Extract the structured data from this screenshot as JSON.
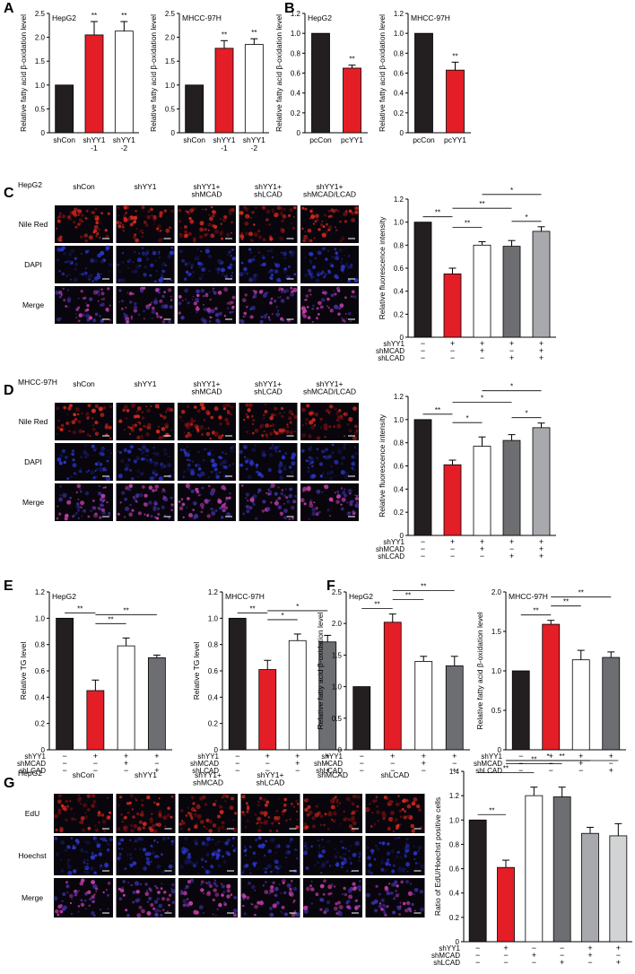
{
  "colors": {
    "black": "#231f20",
    "red": "#e41e26",
    "white": "#ffffff",
    "dark_gray": "#6d6e71",
    "mid_gray": "#a7a9ac",
    "light_gray": "#d1d3d4",
    "image_bg": "#08060c"
  },
  "panels": {
    "A": {
      "letter": "A"
    },
    "B": {
      "letter": "B"
    },
    "C": {
      "letter": "C",
      "cell": "HepG2",
      "cols": [
        "shCon",
        "shYY1",
        "shYY1+\nshMCAD",
        "shYY1+\nshLCAD",
        "shYY1+\nshMCAD/LCAD"
      ],
      "rows": [
        "Nile Red",
        "DAPI",
        "Merge"
      ]
    },
    "D": {
      "letter": "D",
      "cell": "MHCC-97H",
      "cols": [
        "shCon",
        "shYY1",
        "shYY1+\nshMCAD",
        "shYY1+\nshLCAD",
        "shYY1+\nshMCAD/LCAD"
      ],
      "rows": [
        "Nile Red",
        "DAPI",
        "Merge"
      ]
    },
    "E": {
      "letter": "E"
    },
    "F": {
      "letter": "F"
    },
    "G": {
      "letter": "G",
      "cell": "HepG2",
      "cols": [
        "shCon",
        "shYY1",
        "shYY1+\nshMCAD",
        "shYY1+\nshLCAD",
        "shMCAD",
        "shLCAD"
      ],
      "rows": [
        "EdU",
        "Hoechst",
        "Merge"
      ]
    }
  },
  "chart_data": [
    {
      "id": "A1",
      "type": "bar",
      "title": "HepG2",
      "ylabel": "Relative fatty acid β-oxidation level",
      "categories": [
        "shCon",
        "shYY1\n-1",
        "shYY1\n-2"
      ],
      "values": [
        1.0,
        2.05,
        2.13
      ],
      "errors": [
        0,
        0.28,
        0.2
      ],
      "sig": [
        "",
        "**",
        "**"
      ],
      "ylim": [
        0,
        2.5
      ],
      "yticks": [
        0,
        0.5,
        1.0,
        1.5,
        2.0,
        2.5
      ],
      "colors": [
        "black",
        "red",
        "white"
      ]
    },
    {
      "id": "A2",
      "type": "bar",
      "title": "MHCC-97H",
      "ylabel": "Relative fatty acid β-oxidation level",
      "categories": [
        "shCon",
        "shYY1\n-1",
        "shYY1\n-2"
      ],
      "values": [
        1.0,
        1.77,
        1.85
      ],
      "errors": [
        0,
        0.16,
        0.12
      ],
      "sig": [
        "",
        "**",
        "**"
      ],
      "ylim": [
        0,
        2.5
      ],
      "yticks": [
        0,
        0.5,
        1.0,
        1.5,
        2.0,
        2.5
      ],
      "colors": [
        "black",
        "red",
        "white"
      ]
    },
    {
      "id": "B1",
      "type": "bar",
      "title": "HepG2",
      "ylabel": "Relative fatty acid β-oxidation level",
      "categories": [
        "pcCon",
        "pcYY1"
      ],
      "values": [
        1.0,
        0.65
      ],
      "errors": [
        0,
        0.03
      ],
      "sig": [
        "",
        "**"
      ],
      "ylim": [
        0,
        1.2
      ],
      "yticks": [
        0,
        0.2,
        0.4,
        0.6,
        0.8,
        1.0,
        1.2
      ],
      "colors": [
        "black",
        "red"
      ]
    },
    {
      "id": "B2",
      "type": "bar",
      "title": "MHCC-97H",
      "ylabel": "Relative fatty acid β-oxidation level",
      "categories": [
        "pcCon",
        "pcYY1"
      ],
      "values": [
        1.0,
        0.63
      ],
      "errors": [
        0,
        0.08
      ],
      "sig": [
        "",
        "**"
      ],
      "ylim": [
        0,
        1.2
      ],
      "yticks": [
        0,
        0.2,
        0.4,
        0.6,
        0.8,
        1.0,
        1.2
      ],
      "colors": [
        "black",
        "red"
      ]
    },
    {
      "id": "C",
      "type": "bar",
      "title": "",
      "ylabel": "Relative fluorescence intensity",
      "values": [
        1.0,
        0.55,
        0.8,
        0.79,
        0.92
      ],
      "errors": [
        0,
        0.05,
        0.03,
        0.05,
        0.04
      ],
      "ylim": [
        0,
        1.2
      ],
      "yticks": [
        0,
        0.2,
        0.4,
        0.6,
        0.8,
        1.0,
        1.2
      ],
      "colors": [
        "black",
        "red",
        "white",
        "dark_gray",
        "mid_gray"
      ],
      "cond_labels": [
        "shYY1",
        "shMCAD",
        "shLCAD"
      ],
      "cond": [
        [
          "−",
          "+",
          "+",
          "+",
          "+"
        ],
        [
          "−",
          "−",
          "+",
          "−",
          "+"
        ],
        [
          "−",
          "−",
          "−",
          "+",
          "+"
        ]
      ],
      "brackets": [
        {
          "from": 0,
          "to": 1,
          "label": "**",
          "level": 0
        },
        {
          "from": 1,
          "to": 2,
          "label": "**",
          "level": 1
        },
        {
          "from": 1,
          "to": 3,
          "label": "**",
          "level": 2
        },
        {
          "from": 3,
          "to": 4,
          "label": "*",
          "level": 3
        },
        {
          "from": 2,
          "to": 4,
          "label": "*",
          "level": 4
        }
      ]
    },
    {
      "id": "D",
      "type": "bar",
      "title": "",
      "ylabel": "Relative fluorescence intensity",
      "values": [
        1.0,
        0.61,
        0.77,
        0.82,
        0.93
      ],
      "errors": [
        0,
        0.04,
        0.08,
        0.05,
        0.04
      ],
      "ylim": [
        0,
        1.2
      ],
      "yticks": [
        0,
        0.2,
        0.4,
        0.6,
        0.8,
        1.0,
        1.2
      ],
      "colors": [
        "black",
        "red",
        "white",
        "dark_gray",
        "mid_gray"
      ],
      "cond_labels": [
        "shYY1",
        "shMCAD",
        "shLCAD"
      ],
      "cond": [
        [
          "−",
          "+",
          "+",
          "+",
          "+"
        ],
        [
          "−",
          "−",
          "+",
          "−",
          "+"
        ],
        [
          "−",
          "−",
          "−",
          "+",
          "+"
        ]
      ],
      "brackets": [
        {
          "from": 0,
          "to": 1,
          "label": "**",
          "level": 0
        },
        {
          "from": 1,
          "to": 2,
          "label": "*",
          "level": 1
        },
        {
          "from": 1,
          "to": 3,
          "label": "*",
          "level": 2
        },
        {
          "from": 3,
          "to": 4,
          "label": "*",
          "level": 3
        },
        {
          "from": 2,
          "to": 4,
          "label": "*",
          "level": 4
        }
      ]
    },
    {
      "id": "E1",
      "type": "bar",
      "title": "HepG2",
      "ylabel": "Relative TG level",
      "values": [
        1.0,
        0.45,
        0.79,
        0.7
      ],
      "errors": [
        0,
        0.08,
        0.06,
        0.02
      ],
      "ylim": [
        0,
        1.2
      ],
      "yticks": [
        0,
        0.2,
        0.4,
        0.6,
        0.8,
        1.0,
        1.2
      ],
      "colors": [
        "black",
        "red",
        "white",
        "dark_gray"
      ],
      "cond_labels": [
        "shYY1",
        "shMCAD",
        "shLCAD"
      ],
      "cond": [
        [
          "−",
          "+",
          "+",
          "+"
        ],
        [
          "−",
          "−",
          "+",
          "−"
        ],
        [
          "−",
          "−",
          "−",
          "+"
        ]
      ],
      "brackets": [
        {
          "from": 0,
          "to": 1,
          "label": "**",
          "level": 0
        },
        {
          "from": 1,
          "to": 2,
          "label": "**",
          "level": 1
        },
        {
          "from": 1,
          "to": 3,
          "label": "**",
          "level": 2
        }
      ]
    },
    {
      "id": "E2",
      "type": "bar",
      "title": "MHCC-97H",
      "ylabel": "Relative TG level",
      "values": [
        1.0,
        0.61,
        0.83,
        0.82
      ],
      "errors": [
        0,
        0.07,
        0.05,
        0.05
      ],
      "ylim": [
        0,
        1.2
      ],
      "yticks": [
        0,
        0.2,
        0.4,
        0.6,
        0.8,
        1.0,
        1.2
      ],
      "colors": [
        "black",
        "red",
        "white",
        "dark_gray"
      ],
      "cond_labels": [
        "shYY1",
        "shMCAD",
        "shLCAD"
      ],
      "cond": [
        [
          "−",
          "+",
          "+",
          "+"
        ],
        [
          "−",
          "−",
          "+",
          "−"
        ],
        [
          "−",
          "−",
          "−",
          "+"
        ]
      ],
      "brackets": [
        {
          "from": 0,
          "to": 1,
          "label": "**",
          "level": 0
        },
        {
          "from": 1,
          "to": 2,
          "label": "*",
          "level": 1
        },
        {
          "from": 1,
          "to": 3,
          "label": "*",
          "level": 2
        }
      ]
    },
    {
      "id": "F1",
      "type": "bar",
      "title": "HepG2",
      "ylabel": "Relative fatty acid β-oxidation level",
      "values": [
        1.0,
        2.02,
        1.4,
        1.33
      ],
      "errors": [
        0,
        0.13,
        0.08,
        0.15
      ],
      "ylim": [
        0,
        2.5
      ],
      "yticks": [
        0,
        0.5,
        1.0,
        1.5,
        2.0,
        2.5
      ],
      "colors": [
        "black",
        "red",
        "white",
        "dark_gray"
      ],
      "cond_labels": [
        "shYY1",
        "shMCAD",
        "shLCAD"
      ],
      "cond": [
        [
          "−",
          "+",
          "+",
          "+"
        ],
        [
          "−",
          "−",
          "+",
          "−"
        ],
        [
          "−",
          "−",
          "−",
          "+"
        ]
      ],
      "brackets": [
        {
          "from": 0,
          "to": 1,
          "label": "**",
          "level": 0
        },
        {
          "from": 1,
          "to": 2,
          "label": "**",
          "level": 1
        },
        {
          "from": 1,
          "to": 3,
          "label": "**",
          "level": 2
        }
      ]
    },
    {
      "id": "F2",
      "type": "bar",
      "title": "MHCC-97H",
      "ylabel": "Relative fatty acid β-oxidation level",
      "values": [
        1.0,
        1.59,
        1.14,
        1.17
      ],
      "errors": [
        0,
        0.05,
        0.12,
        0.07
      ],
      "ylim": [
        0,
        2.0
      ],
      "yticks": [
        0,
        0.5,
        1.0,
        1.5,
        2.0
      ],
      "colors": [
        "black",
        "red",
        "white",
        "dark_gray"
      ],
      "cond_labels": [
        "shYY1",
        "shMCAD",
        "shLCAD"
      ],
      "cond": [
        [
          "−",
          "+",
          "+",
          "+"
        ],
        [
          "−",
          "−",
          "+",
          "−"
        ],
        [
          "−",
          "−",
          "−",
          "+"
        ]
      ],
      "brackets": [
        {
          "from": 0,
          "to": 1,
          "label": "**",
          "level": 0
        },
        {
          "from": 1,
          "to": 2,
          "label": "**",
          "level": 1
        },
        {
          "from": 1,
          "to": 3,
          "label": "**",
          "level": 2
        }
      ]
    },
    {
      "id": "G",
      "type": "bar",
      "title": "",
      "ylabel": "Ratio of EdU/Hoechst positive cells",
      "values": [
        1.0,
        0.61,
        1.2,
        1.19,
        0.89,
        0.87
      ],
      "errors": [
        0,
        0.06,
        0.07,
        0.08,
        0.05,
        0.1
      ],
      "ylim": [
        0,
        1.4
      ],
      "yticks": [
        0,
        0.2,
        0.4,
        0.6,
        0.8,
        1.0,
        1.2,
        1.4
      ],
      "colors": [
        "black",
        "red",
        "white",
        "dark_gray",
        "mid_gray",
        "light_gray"
      ],
      "cond_labels": [
        "shYY1",
        "shMCAD",
        "shLCAD"
      ],
      "cond": [
        [
          "−",
          "+",
          "−",
          "−",
          "+",
          "+"
        ],
        [
          "−",
          "−",
          "+",
          "−",
          "+",
          "−"
        ],
        [
          "−",
          "−",
          "−",
          "+",
          "−",
          "+"
        ]
      ],
      "brackets": [
        {
          "from": 0,
          "to": 1,
          "label": "**",
          "level": 0
        },
        {
          "from": 0,
          "to": 2,
          "label": "**",
          "level": 1
        },
        {
          "from": 1,
          "to": 3,
          "label": "**",
          "level": 2
        },
        {
          "from": 1,
          "to": 4,
          "label": "*",
          "level": 3
        },
        {
          "from": 1,
          "to": 5,
          "label": "**",
          "level": 4
        }
      ]
    }
  ]
}
